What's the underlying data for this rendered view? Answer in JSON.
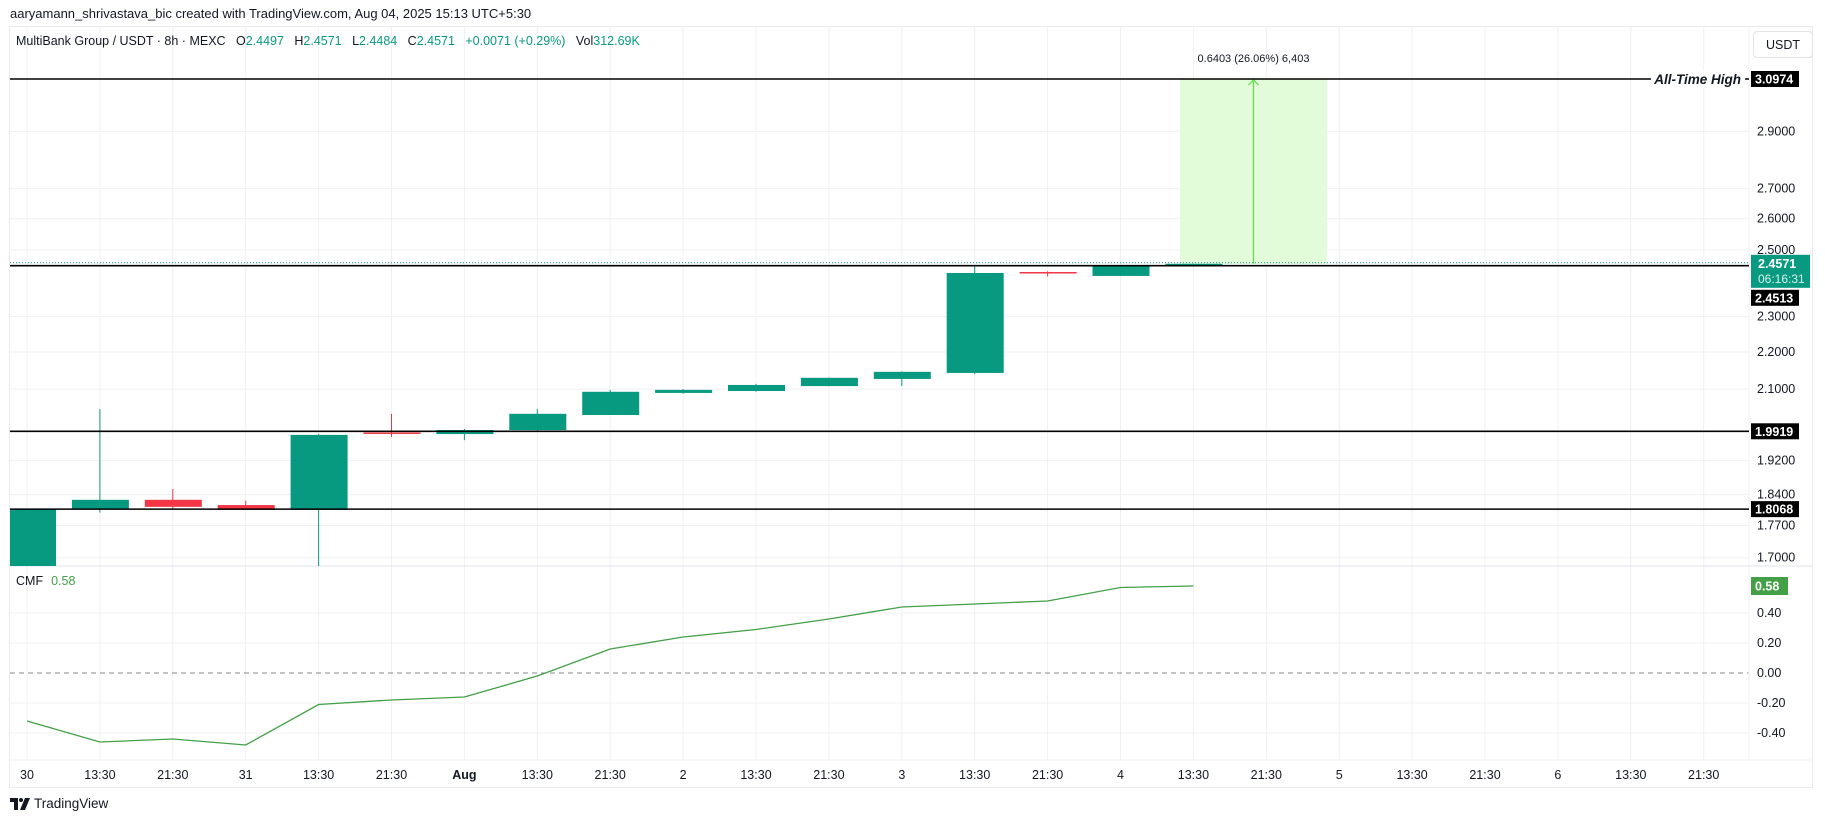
{
  "credit": "aaryamann_shrivastava_bic created with TradingView.com, Aug 04, 2025 15:13 UTC+5:30",
  "legend": {
    "symbol": "MultiBank Group / USDT · 8h · MEXC",
    "o_label": "O",
    "o": "2.4497",
    "h_label": "H",
    "h": "2.4571",
    "l_label": "L",
    "l": "2.4484",
    "c_label": "C",
    "c": "2.4571",
    "change": "+0.0071 (+0.29%)",
    "vol_label": "Vol",
    "vol": "312.69K"
  },
  "currency_button": "USDT",
  "footer_logo": "TradingView",
  "colors": {
    "up": "#089981",
    "down": "#f23645",
    "cmf": "#43a047",
    "measure_fill": "#e2fbd9",
    "measure_line": "#5ee04a",
    "level": "#000000"
  },
  "chart_data": [
    {
      "type": "candlestick",
      "scale": "log",
      "ylim": [
        1.68,
        3.15
      ],
      "grid": true,
      "y_ticks": [
        "2.9000",
        "2.7000",
        "2.6000",
        "2.5000",
        "2.3000",
        "2.2000",
        "2.1000",
        "1.9200",
        "1.8400",
        "1.7700",
        "1.7000"
      ],
      "x_ticks": [
        "30",
        "13:30",
        "21:30",
        "31",
        "13:30",
        "21:30",
        "Aug",
        "13:30",
        "21:30",
        "2",
        "13:30",
        "21:30",
        "3",
        "13:30",
        "21:30",
        "4",
        "13:30",
        "21:30",
        "5",
        "13:30",
        "21:30",
        "6",
        "13:30",
        "21:30"
      ],
      "candles": [
        {
          "t": "Jul 30 05:30",
          "o": 1.682,
          "h": 1.807,
          "l": 1.682,
          "c": 1.806
        },
        {
          "t": "Jul 30 13:30",
          "o": 1.807,
          "h": 2.048,
          "l": 1.799,
          "c": 1.828
        },
        {
          "t": "Jul 30 21:30",
          "o": 1.828,
          "h": 1.853,
          "l": 1.807,
          "c": 1.812
        },
        {
          "t": "Jul 31 05:30",
          "o": 1.816,
          "h": 1.826,
          "l": 1.805,
          "c": 1.805
        },
        {
          "t": "Jul 31 13:30",
          "o": 1.805,
          "h": 1.985,
          "l": 1.682,
          "c": 1.983
        },
        {
          "t": "Jul 31 21:30",
          "o": 1.989,
          "h": 2.036,
          "l": 1.978,
          "c": 1.986
        },
        {
          "t": "Aug 1 05:30",
          "o": 1.985,
          "h": 1.998,
          "l": 1.97,
          "c": 1.995
        },
        {
          "t": "Aug 1 13:30",
          "o": 1.995,
          "h": 2.048,
          "l": 1.992,
          "c": 2.036
        },
        {
          "t": "Aug 1 21:30",
          "o": 2.033,
          "h": 2.098,
          "l": 2.033,
          "c": 2.093
        },
        {
          "t": "Aug 2 05:30",
          "o": 2.09,
          "h": 2.1,
          "l": 2.088,
          "c": 2.098
        },
        {
          "t": "Aug 2 13:30",
          "o": 2.095,
          "h": 2.114,
          "l": 2.093,
          "c": 2.111
        },
        {
          "t": "Aug 2 21:30",
          "o": 2.108,
          "h": 2.131,
          "l": 2.108,
          "c": 2.13
        },
        {
          "t": "Aug 3 05:30",
          "o": 2.127,
          "h": 2.147,
          "l": 2.108,
          "c": 2.146
        },
        {
          "t": "Aug 3 13:30",
          "o": 2.143,
          "h": 2.453,
          "l": 2.14,
          "c": 2.429
        },
        {
          "t": "Aug 3 21:30",
          "o": 2.432,
          "h": 2.434,
          "l": 2.418,
          "c": 2.429
        },
        {
          "t": "Aug 4 05:30",
          "o": 2.42,
          "h": 2.451,
          "l": 2.42,
          "c": 2.45
        },
        {
          "t": "Aug 4 13:30",
          "o": 2.4497,
          "h": 2.4571,
          "l": 2.4484,
          "c": 2.4571
        }
      ],
      "levels": [
        {
          "value": "3.0974",
          "label": "All-Time High"
        },
        {
          "value": "2.4513",
          "label": ""
        },
        {
          "value": "1.9919",
          "label": ""
        },
        {
          "value": "1.8068",
          "label": ""
        }
      ],
      "last_price": {
        "value": "2.4571",
        "countdown": "06:16:31"
      },
      "measure": {
        "text": "0.6403 (26.06%) 6,403",
        "from": 2.4571,
        "to": 3.0974,
        "start": "Aug 4 13:30",
        "end": "Aug 5 05:30"
      }
    },
    {
      "type": "line",
      "name": "CMF",
      "current": "0.58",
      "ylim": [
        -0.62,
        0.7
      ],
      "y_ticks": [
        "0.40",
        "0.20",
        "0.00",
        "-0.20",
        "-0.40"
      ],
      "zero_line": "dashed",
      "values": [
        -0.32,
        -0.46,
        -0.44,
        -0.48,
        -0.21,
        -0.18,
        -0.16,
        -0.02,
        0.16,
        0.24,
        0.29,
        0.36,
        0.44,
        0.46,
        0.48,
        0.57,
        0.58
      ]
    }
  ]
}
